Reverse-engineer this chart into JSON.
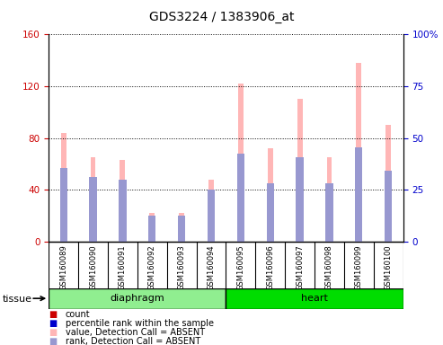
{
  "title": "GDS3224 / 1383906_at",
  "samples": [
    "GSM160089",
    "GSM160090",
    "GSM160091",
    "GSM160092",
    "GSM160093",
    "GSM160094",
    "GSM160095",
    "GSM160096",
    "GSM160097",
    "GSM160098",
    "GSM160099",
    "GSM160100"
  ],
  "groups": [
    {
      "name": "diaphragm",
      "indices": [
        0,
        1,
        2,
        3,
        4,
        5
      ],
      "color": "#90EE90"
    },
    {
      "name": "heart",
      "indices": [
        6,
        7,
        8,
        9,
        10,
        11
      ],
      "color": "#00DD00"
    }
  ],
  "value_absent": [
    84,
    65,
    63,
    22,
    22,
    48,
    122,
    72,
    110,
    65,
    138,
    90
  ],
  "rank_absent": [
    57,
    50,
    48,
    20,
    20,
    40,
    68,
    45,
    65,
    45,
    73,
    55
  ],
  "ylim_left": [
    0,
    160
  ],
  "ylim_right": [
    0,
    100
  ],
  "yticks_left": [
    0,
    40,
    80,
    120,
    160
  ],
  "yticks_right": [
    0,
    25,
    50,
    75,
    100
  ],
  "pink_bar_width": 0.18,
  "blue_bar_width": 0.25,
  "value_absent_color": "#FFB6B6",
  "rank_absent_color": "#9898D0",
  "count_color": "#CC0000",
  "percentile_color": "#0000CC",
  "bg_color": "#FFFFFF",
  "plot_bg": "#FFFFFF",
  "grid_color": "black",
  "tick_label_area_color": "#CCCCCC",
  "tissue_label": "tissue",
  "legend_items": [
    {
      "label": "count",
      "color": "#CC0000"
    },
    {
      "label": "percentile rank within the sample",
      "color": "#0000CC"
    },
    {
      "label": "value, Detection Call = ABSENT",
      "color": "#FFB6B6"
    },
    {
      "label": "rank, Detection Call = ABSENT",
      "color": "#9898D0"
    }
  ]
}
